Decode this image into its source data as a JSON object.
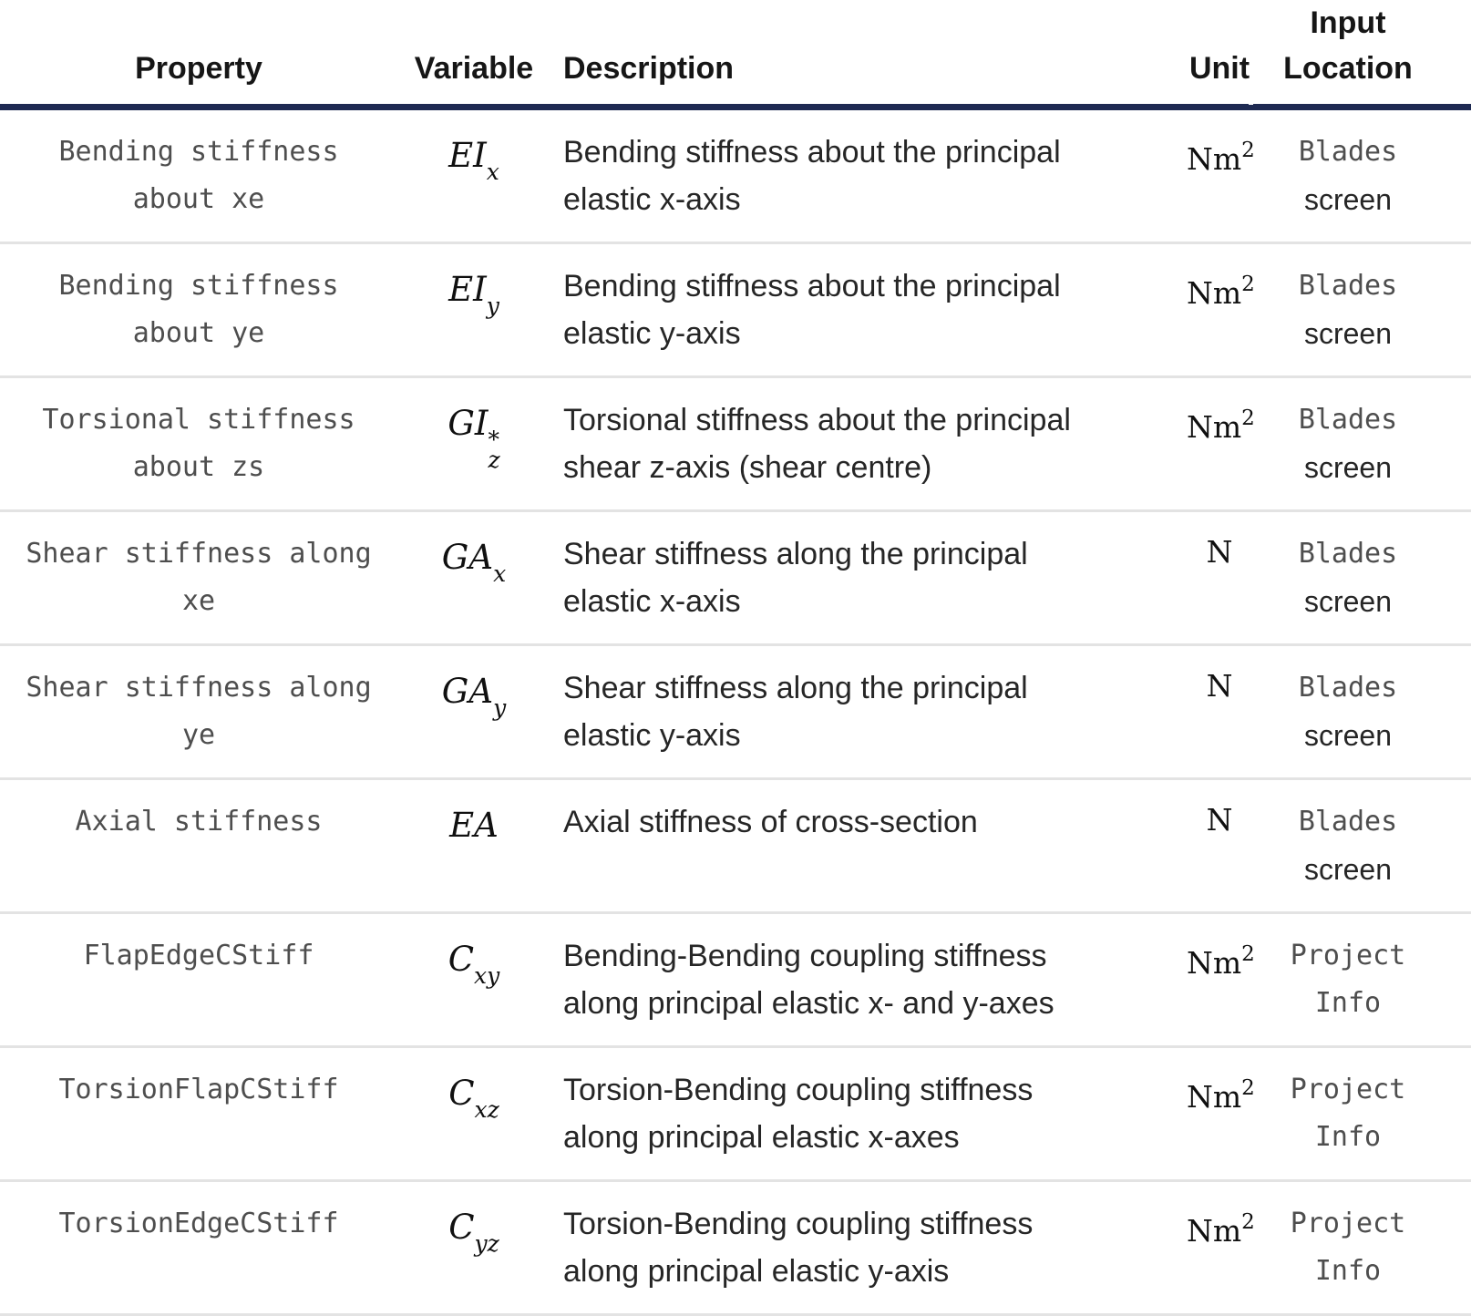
{
  "colors": {
    "header_rule": "#1e2a52",
    "row_separator": "#e3e3e3",
    "code_text": "#4e4e4e",
    "body_text": "#262626"
  },
  "header": {
    "property": "Property",
    "variable": "Variable",
    "description": "Description",
    "unit": "Unit",
    "input_location": "Input Location"
  },
  "rows": [
    {
      "property": "Bending stiffness\nabout xe",
      "var_main": "EI",
      "var_sup": "",
      "var_sub": "x",
      "description": "Bending stiffness about the principal\nelastic x-axis",
      "unit_base": "Nm",
      "unit_exp": "2",
      "loc_line1": "Blades",
      "loc_line2": "screen"
    },
    {
      "property": "Bending stiffness\nabout ye",
      "var_main": "EI",
      "var_sup": "",
      "var_sub": "y",
      "description": "Bending stiffness about the principal\nelastic y-axis",
      "unit_base": "Nm",
      "unit_exp": "2",
      "loc_line1": "Blades",
      "loc_line2": "screen"
    },
    {
      "property": "Torsional stiffness\nabout zs",
      "var_main": "GI",
      "var_sup": "*",
      "var_sub": "z",
      "description": "Torsional stiffness about the principal\nshear z-axis (shear centre)",
      "unit_base": "Nm",
      "unit_exp": "2",
      "loc_line1": "Blades",
      "loc_line2": "screen"
    },
    {
      "property": "Shear stiffness along\nxe",
      "var_main": "GA",
      "var_sup": "",
      "var_sub": "x",
      "description": "Shear stiffness along the principal\nelastic x-axis",
      "unit_base": "N",
      "unit_exp": "",
      "loc_line1": "Blades",
      "loc_line2": "screen"
    },
    {
      "property": "Shear stiffness along\nye",
      "var_main": "GA",
      "var_sup": "",
      "var_sub": "y",
      "description": "Shear stiffness along the principal\nelastic y-axis",
      "unit_base": "N",
      "unit_exp": "",
      "loc_line1": "Blades",
      "loc_line2": "screen"
    },
    {
      "property": "Axial stiffness",
      "var_main": "EA",
      "var_sup": "",
      "var_sub": "",
      "description": "Axial stiffness of cross-section",
      "unit_base": "N",
      "unit_exp": "",
      "loc_line1": "Blades",
      "loc_line2": "screen"
    },
    {
      "property": "FlapEdgeCStiff",
      "var_main": "C",
      "var_sup": "",
      "var_sub": "xy",
      "description": "Bending-Bending coupling stiffness\nalong principal elastic x- and y-axes",
      "unit_base": "Nm",
      "unit_exp": "2",
      "loc_line1": "Project",
      "loc_line2": "Info"
    },
    {
      "property": "TorsionFlapCStiff",
      "var_main": "C",
      "var_sup": "",
      "var_sub": "xz",
      "description": "Torsion-Bending coupling stiffness\nalong principal elastic x-axes",
      "unit_base": "Nm",
      "unit_exp": "2",
      "loc_line1": "Project",
      "loc_line2": "Info"
    },
    {
      "property": "TorsionEdgeCStiff",
      "var_main": "C",
      "var_sup": "",
      "var_sub": "yz",
      "description": "Torsion-Bending coupling stiffness\nalong principal elastic y-axis",
      "unit_base": "Nm",
      "unit_exp": "2",
      "loc_line1": "Project",
      "loc_line2": "Info"
    }
  ]
}
